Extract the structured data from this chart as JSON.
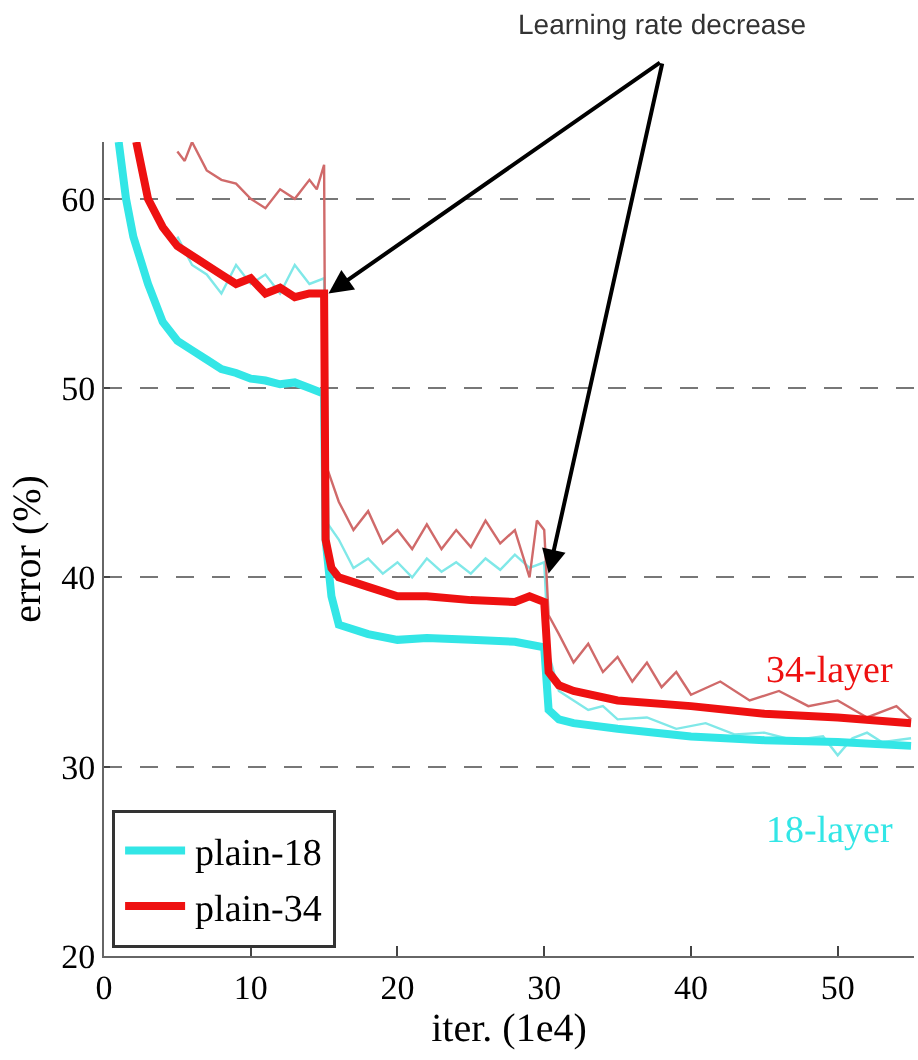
{
  "chart_data": {
    "type": "line",
    "xlabel": "iter. (1e4)",
    "ylabel": "error (%)",
    "xlim": [
      0,
      55.2
    ],
    "ylim": [
      20,
      63
    ],
    "xticks": [
      0,
      10,
      20,
      30,
      40,
      50
    ],
    "yticks": [
      20,
      30,
      40,
      50,
      60
    ],
    "grid": "y",
    "legend": "bottom left",
    "line_style": "solid",
    "marker": "none",
    "series": [
      {
        "color": "#80e8e8",
        "x": [
          5,
          6,
          7,
          8,
          9,
          10,
          11,
          12,
          13,
          14,
          15,
          15.1,
          16,
          17,
          18,
          19,
          20,
          21,
          22,
          23,
          24,
          25,
          26,
          27,
          28,
          29,
          30,
          30.3,
          31,
          32,
          33,
          34,
          35,
          37,
          39,
          41,
          43,
          45,
          47,
          49,
          50,
          51,
          52,
          53,
          55
        ],
        "values": [
          58,
          56.5,
          56,
          55,
          56.5,
          55.5,
          56,
          55,
          56.5,
          55.5,
          55.8,
          43,
          42,
          40.5,
          41,
          40.2,
          40.8,
          40,
          41,
          40.3,
          40.8,
          40.2,
          41,
          40.4,
          41.2,
          40.5,
          40.8,
          36,
          34,
          33.5,
          33,
          33.2,
          32.5,
          32.6,
          32,
          32.3,
          31.7,
          31.8,
          31.4,
          31.6,
          30.6,
          31.5,
          31.8,
          31.3,
          31.5
        ]
      },
      {
        "color": "#d06a6a",
        "x": [
          5,
          5.5,
          6,
          7,
          8,
          9,
          10,
          11,
          12,
          13,
          14,
          14.5,
          15,
          15.1,
          16,
          17,
          18,
          19,
          20,
          21,
          22,
          23,
          24,
          25,
          26,
          27,
          28,
          29,
          29.5,
          30,
          30.3,
          31,
          32,
          33,
          34,
          35,
          36,
          37,
          38,
          39,
          40,
          42,
          44,
          46,
          48,
          50,
          52,
          54,
          55
        ],
        "values": [
          62.5,
          62,
          63,
          61.5,
          61,
          60.8,
          60,
          59.5,
          60.5,
          60,
          61,
          60.5,
          61.8,
          46,
          44,
          42.5,
          43.5,
          41.8,
          42.5,
          41.5,
          42.8,
          41.5,
          42.5,
          41.6,
          43,
          41.8,
          42.5,
          40,
          43,
          42.5,
          38,
          37,
          35.5,
          36.5,
          35,
          35.8,
          34.5,
          35.5,
          34.2,
          35,
          33.8,
          34.5,
          33.5,
          34,
          33.2,
          33.5,
          32.6,
          33.2,
          32.5
        ]
      },
      {
        "name": "plain-18",
        "color": "#33e6e6",
        "x": [
          1,
          1.5,
          2,
          3,
          4,
          5,
          6,
          7,
          8,
          9,
          10,
          11,
          12,
          13,
          14,
          15,
          15.1,
          15.5,
          16,
          18,
          20,
          22,
          25,
          28,
          30,
          30.3,
          31,
          32,
          35,
          40,
          45,
          50,
          55
        ],
        "values": [
          63,
          60,
          58,
          55.5,
          53.5,
          52.5,
          52,
          51.5,
          51,
          50.8,
          50.5,
          50.4,
          50.2,
          50.3,
          50,
          49.7,
          42,
          39,
          37.5,
          37,
          36.7,
          36.8,
          36.7,
          36.6,
          36.3,
          33,
          32.5,
          32.3,
          32,
          31.6,
          31.4,
          31.3,
          31.1
        ]
      },
      {
        "name": "plain-34",
        "color": "#ee1111",
        "x": [
          2.2,
          3,
          4,
          5,
          6,
          7,
          8,
          9,
          10,
          11,
          12,
          13,
          14,
          15,
          15.1,
          15.5,
          16,
          18,
          20,
          22,
          25,
          28,
          29,
          30,
          30.3,
          31,
          32,
          35,
          40,
          45,
          50,
          55
        ],
        "values": [
          63,
          60,
          58.5,
          57.5,
          57,
          56.5,
          56,
          55.5,
          55.8,
          55,
          55.3,
          54.8,
          55,
          55,
          42,
          40.5,
          40,
          39.5,
          39,
          39,
          38.8,
          38.7,
          39,
          38.7,
          35,
          34.3,
          34,
          33.5,
          33.2,
          32.8,
          32.6,
          32.3
        ]
      }
    ],
    "annotations": [
      {
        "text": "Learning rate decrease",
        "x": 15,
        "y": 55
      },
      "34-layer",
      "18-layer"
    ]
  }
}
